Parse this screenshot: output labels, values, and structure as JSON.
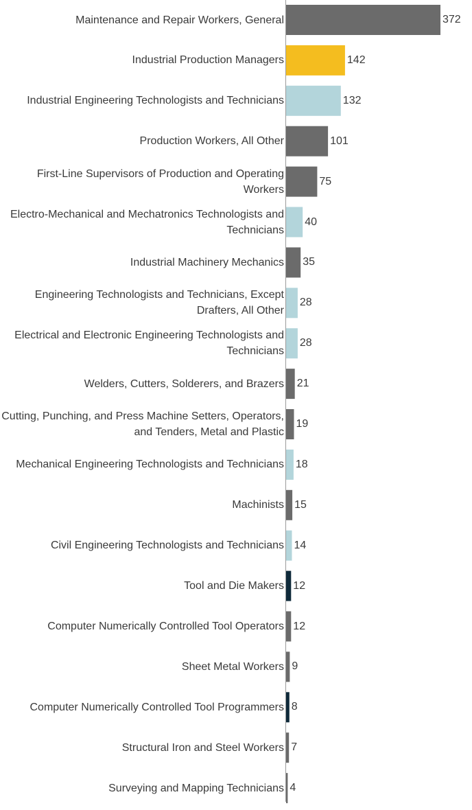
{
  "chart_data": {
    "type": "bar",
    "orientation": "horizontal",
    "title": "",
    "xlabel": "",
    "ylabel": "",
    "xlim": [
      0,
      372
    ],
    "grid": false,
    "legend": "none",
    "categories": [
      "Maintenance and Repair Workers, General",
      "Industrial Production Managers",
      "Industrial Engineering Technologists and Technicians",
      "Production Workers, All Other",
      "First-Line Supervisors of Production and Operating Workers",
      "Electro-Mechanical and Mechatronics Technologists and Technicians",
      "Industrial Machinery Mechanics",
      "Engineering Technologists and Technicians, Except Drafters, All Other",
      "Electrical and Electronic Engineering Technologists and Technicians",
      "Welders, Cutters, Solderers, and Brazers",
      "Cutting, Punching, and Press Machine Setters, Operators, and Tenders, Metal and Plastic",
      "Mechanical Engineering Technologists and Technicians",
      "Machinists",
      "Civil Engineering Technologists and Technicians",
      "Tool and Die Makers",
      "Computer Numerically Controlled Tool Operators",
      "Sheet Metal Workers",
      "Computer Numerically Controlled Tool Programmers",
      "Structural Iron and Steel Workers",
      "Surveying and Mapping Technicians"
    ],
    "values": [
      372,
      142,
      132,
      101,
      75,
      40,
      35,
      28,
      28,
      21,
      19,
      18,
      15,
      14,
      12,
      12,
      9,
      8,
      7,
      4
    ],
    "colors": [
      "#6b6b6b",
      "#f4bd1f",
      "#b3d5db",
      "#6b6b6b",
      "#6b6b6b",
      "#b3d5db",
      "#6b6b6b",
      "#b3d5db",
      "#b3d5db",
      "#6b6b6b",
      "#6b6b6b",
      "#b3d5db",
      "#6b6b6b",
      "#b3d5db",
      "#0f2a3a",
      "#6b6b6b",
      "#6b6b6b",
      "#0f2a3a",
      "#6b6b6b",
      "#6b6b6b"
    ]
  }
}
